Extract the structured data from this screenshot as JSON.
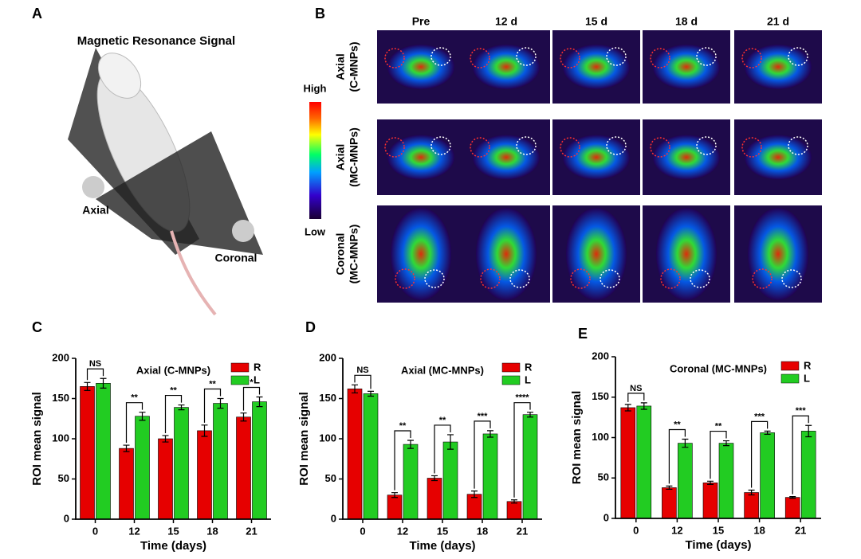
{
  "panel_a": {
    "label": "A",
    "title": "Magnetic Resonance Signal",
    "axial": "Axial",
    "coronal": "Coronal"
  },
  "panel_b": {
    "label": "B",
    "columns": [
      "Pre",
      "12 d",
      "15 d",
      "18 d",
      "21 d"
    ],
    "rows": [
      [
        "Axial",
        "(C-MNPs)"
      ],
      [
        "Axial",
        "(MC-MNPs)"
      ],
      [
        "Coronal",
        "(MC-MNPs)"
      ]
    ],
    "colorbar_high": "High",
    "colorbar_low": "Low"
  },
  "chart_data": [
    {
      "type": "bar",
      "panel": "C",
      "title": "Axial (C-MNPs)",
      "ylabel": "ROI mean signal",
      "xlabel": "Time (days)",
      "categories": [
        "0",
        "12",
        "15",
        "18",
        "21"
      ],
      "ylim": [
        0,
        200
      ],
      "yticks": [
        0,
        50,
        100,
        150,
        200
      ],
      "series": [
        {
          "name": "R",
          "color": "#e60000",
          "values": [
            165,
            88,
            100,
            110,
            127
          ],
          "errors": [
            5,
            4,
            4,
            7,
            5
          ]
        },
        {
          "name": "L",
          "color": "#22cc22",
          "values": [
            169,
            128,
            139,
            144,
            146
          ],
          "errors": [
            6,
            5,
            3,
            6,
            6
          ]
        }
      ],
      "significance": [
        "NS",
        "**",
        "**",
        "**",
        "*"
      ]
    },
    {
      "type": "bar",
      "panel": "D",
      "title": "Axial (MC-MNPs)",
      "ylabel": "ROI mean signal",
      "xlabel": "Time (days)",
      "categories": [
        "0",
        "12",
        "15",
        "18",
        "21"
      ],
      "ylim": [
        0,
        200
      ],
      "yticks": [
        0,
        50,
        100,
        150,
        200
      ],
      "series": [
        {
          "name": "R",
          "color": "#e60000",
          "values": [
            162,
            30,
            51,
            31,
            22
          ],
          "errors": [
            5,
            3,
            3,
            4,
            2
          ]
        },
        {
          "name": "L",
          "color": "#22cc22",
          "values": [
            156,
            93,
            96,
            106,
            130
          ],
          "errors": [
            3,
            5,
            9,
            4,
            3
          ]
        }
      ],
      "significance": [
        "NS",
        "**",
        "**",
        "***",
        "****"
      ]
    },
    {
      "type": "bar",
      "panel": "E",
      "title": "Coronal (MC-MNPs)",
      "ylabel": "ROI mean signal",
      "xlabel": "Time (days)",
      "categories": [
        "0",
        "12",
        "15",
        "18",
        "21"
      ],
      "ylim": [
        0,
        200
      ],
      "yticks": [
        0,
        50,
        100,
        150,
        200
      ],
      "series": [
        {
          "name": "R",
          "color": "#e60000",
          "values": [
            137,
            38,
            44,
            32,
            26
          ],
          "errors": [
            4,
            2,
            2,
            3,
            1
          ]
        },
        {
          "name": "L",
          "color": "#22cc22",
          "values": [
            139,
            93,
            93,
            106,
            108
          ],
          "errors": [
            4,
            5,
            3,
            2,
            7
          ]
        }
      ],
      "significance": [
        "NS",
        "**",
        "**",
        "***",
        "***"
      ]
    }
  ]
}
